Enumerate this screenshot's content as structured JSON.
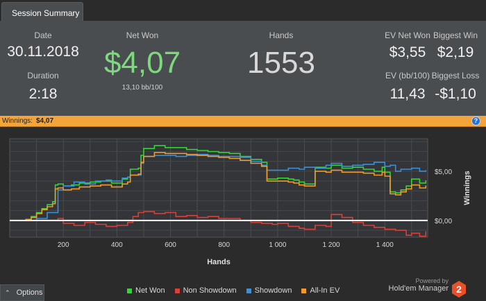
{
  "tab": {
    "label": "Session Summary"
  },
  "summary": {
    "date_label": "Date",
    "date": "30.11.2018",
    "duration_label": "Duration",
    "duration": "2:18",
    "net_won_label": "Net Won",
    "net_won": "$4,07",
    "bb100": "13,10 bb/100",
    "hands_label": "Hands",
    "hands": "1553",
    "ev_net_won_label": "EV Net Won",
    "ev_net_won": "$3,55",
    "biggest_win_label": "Biggest Win",
    "biggest_win": "$2,19",
    "ev_bb100_label": "EV (bb/100)",
    "ev_bb100": "11,43",
    "biggest_loss_label": "Biggest Loss",
    "biggest_loss": "-$1,10"
  },
  "winnings_bar": {
    "label": "Winnings:",
    "value": "$4,07",
    "help_icon": "?"
  },
  "colors": {
    "net_won": "#35d435",
    "non_showdown": "#d8403a",
    "showdown": "#3b8fdc",
    "all_in_ev": "#f09a2e",
    "net_won_big": "#7ed97e",
    "accent_bar": "#f3a43a"
  },
  "chart_data": {
    "type": "line",
    "xlabel": "Hands",
    "ylabel": "Winnings",
    "xlim": [
      0,
      1560
    ],
    "ylim": [
      -1.7,
      8.3
    ],
    "x_ticks": [
      200,
      400,
      600,
      800,
      1000,
      1200,
      1400
    ],
    "x_tick_labels": [
      "200",
      "400",
      "600",
      "800",
      "1 000",
      "1 200",
      "1 400"
    ],
    "y_ticks": [
      0,
      5
    ],
    "y_tick_labels": [
      "$0,00",
      "$5,00"
    ],
    "series": [
      {
        "name": "Net Won",
        "color": "#35d435",
        "x": [
          0,
          30,
          60,
          80,
          100,
          120,
          140,
          160,
          170,
          180,
          200,
          230,
          260,
          300,
          340,
          380,
          420,
          440,
          450,
          480,
          490,
          500,
          540,
          580,
          620,
          660,
          700,
          740,
          780,
          820,
          860,
          900,
          940,
          960,
          1000,
          1040,
          1060,
          1080,
          1100,
          1140,
          1180,
          1200,
          1240,
          1280,
          1320,
          1360,
          1390,
          1400,
          1420,
          1440,
          1460,
          1480,
          1500,
          1530,
          1553
        ],
        "y": [
          0,
          0,
          0.1,
          0.4,
          0.8,
          1.2,
          1.6,
          1.9,
          3.6,
          3.7,
          3.5,
          3.6,
          3.8,
          3.9,
          4.0,
          3.8,
          4.2,
          4.4,
          5.2,
          5.3,
          6.6,
          7.3,
          7.6,
          7.4,
          7.4,
          7.2,
          7.1,
          7.0,
          6.9,
          6.8,
          6.5,
          6.2,
          5.9,
          4.2,
          4.3,
          4.2,
          4.1,
          3.9,
          3.7,
          5.4,
          5.3,
          5.6,
          5.3,
          5.4,
          5.2,
          5.0,
          5.4,
          4.9,
          2.9,
          2.8,
          3.1,
          3.5,
          4.2,
          3.8,
          4.07
        ]
      },
      {
        "name": "Non Showdown",
        "color": "#d8403a",
        "x": [
          0,
          50,
          100,
          140,
          180,
          200,
          240,
          280,
          320,
          360,
          400,
          440,
          460,
          480,
          500,
          540,
          580,
          620,
          660,
          700,
          740,
          780,
          820,
          860,
          900,
          940,
          980,
          1000,
          1040,
          1080,
          1100,
          1140,
          1180,
          1200,
          1240,
          1280,
          1320,
          1360,
          1400,
          1440,
          1480,
          1500,
          1530,
          1553
        ],
        "y": [
          0,
          0,
          0,
          0,
          0.2,
          -0.3,
          -0.5,
          -0.2,
          -0.4,
          -0.6,
          -0.5,
          -0.2,
          0.4,
          0.8,
          0.9,
          0.7,
          0.8,
          0.4,
          0.5,
          0.3,
          0.4,
          0.2,
          0.2,
          0.0,
          -0.2,
          -0.3,
          -0.4,
          -0.3,
          -0.6,
          -0.8,
          -0.9,
          -0.5,
          -0.6,
          0.6,
          0.3,
          -0.2,
          -0.5,
          -0.7,
          -0.9,
          -1.0,
          -1.5,
          -1.3,
          -1.6,
          -1.1
        ]
      },
      {
        "name": "Showdown",
        "color": "#3b8fdc",
        "x": [
          0,
          50,
          100,
          140,
          180,
          200,
          240,
          280,
          320,
          360,
          380,
          420,
          440,
          450,
          480,
          490,
          500,
          540,
          580,
          620,
          660,
          700,
          740,
          780,
          820,
          860,
          900,
          940,
          960,
          1000,
          1040,
          1080,
          1100,
          1140,
          1180,
          1200,
          1240,
          1280,
          1320,
          1360,
          1400,
          1420,
          1440,
          1460,
          1500,
          1530,
          1553
        ],
        "y": [
          0,
          0,
          0.2,
          0.8,
          3.1,
          3.5,
          3.9,
          3.7,
          4.0,
          4.1,
          4.0,
          4.3,
          4.4,
          4.6,
          4.6,
          5.8,
          6.5,
          6.6,
          6.6,
          6.5,
          6.6,
          6.7,
          6.6,
          6.5,
          6.5,
          6.4,
          6.0,
          5.6,
          5.1,
          5.1,
          5.3,
          5.2,
          5.4,
          5.3,
          5.6,
          5.8,
          5.5,
          5.6,
          5.7,
          5.9,
          5.5,
          5.6,
          5.0,
          5.2,
          5.3,
          5.0,
          5.1
        ]
      },
      {
        "name": "All-In EV",
        "color": "#f09a2e",
        "x": [
          0,
          30,
          60,
          80,
          100,
          120,
          140,
          160,
          170,
          180,
          200,
          230,
          260,
          300,
          340,
          380,
          420,
          440,
          450,
          480,
          490,
          500,
          540,
          580,
          620,
          660,
          700,
          740,
          780,
          820,
          860,
          900,
          940,
          960,
          1000,
          1040,
          1060,
          1080,
          1100,
          1140,
          1180,
          1200,
          1240,
          1280,
          1320,
          1360,
          1390,
          1400,
          1420,
          1440,
          1460,
          1480,
          1500,
          1530,
          1553
        ],
        "y": [
          0,
          0,
          0.1,
          0.3,
          0.7,
          1.1,
          1.4,
          1.7,
          3.2,
          3.3,
          3.1,
          3.2,
          3.4,
          3.5,
          3.6,
          3.4,
          3.7,
          3.9,
          4.6,
          4.7,
          5.9,
          6.5,
          6.9,
          6.8,
          6.8,
          6.7,
          6.6,
          6.5,
          6.4,
          6.3,
          6.1,
          5.8,
          5.5,
          4.0,
          4.0,
          3.9,
          3.8,
          3.6,
          3.5,
          5.0,
          4.9,
          5.1,
          4.9,
          4.9,
          4.8,
          4.6,
          4.9,
          4.5,
          2.7,
          2.6,
          2.9,
          3.2,
          3.6,
          3.3,
          3.55
        ]
      }
    ],
    "grid": true,
    "legend_position": "bottom"
  },
  "footer": {
    "options_label": "Options",
    "options_icon": "chevron-up-icon",
    "legend": [
      {
        "label": "Net Won",
        "color": "#35d435"
      },
      {
        "label": "Non Showdown",
        "color": "#d8403a"
      },
      {
        "label": "Showdown",
        "color": "#3b8fdc"
      },
      {
        "label": "All-In EV",
        "color": "#f09a2e"
      }
    ],
    "powered_by": "Powered by",
    "brand": "Hold'em Manager",
    "brand_badge": "2"
  }
}
